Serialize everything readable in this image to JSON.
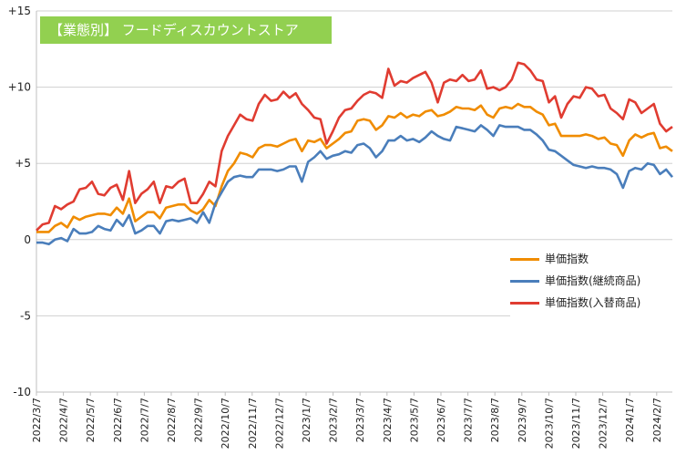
{
  "chart_data": {
    "type": "line",
    "title": "【業態別】 フードディスカウントストア",
    "ylim": [
      -10,
      15
    ],
    "yticks": [
      "-10",
      "-5",
      "0",
      "+5",
      "+10",
      "+15"
    ],
    "ytick_values": [
      -10,
      -5,
      0,
      5,
      10,
      15
    ],
    "xtick_labels": [
      "2022/3/7",
      "2022/4/7",
      "2022/5/7",
      "2022/6/7",
      "2022/7/7",
      "2022/8/7",
      "2022/9/7",
      "2022/10/7",
      "2022/11/7",
      "2022/12/7",
      "2023/1/7",
      "2023/2/7",
      "2023/3/7",
      "2023/4/7",
      "2023/5/7",
      "2023/6/7",
      "2023/7/7",
      "2023/8/7",
      "2023/9/7",
      "2023/10/7",
      "2023/11/7",
      "2023/12/7",
      "2024/1/7",
      "2024/2/7"
    ],
    "grid": true,
    "legend_position": "right",
    "series": [
      {
        "name": "単価指数",
        "color": "#f08c00",
        "values": [
          0.5,
          0.5,
          0.5,
          0.9,
          1.1,
          0.8,
          1.5,
          1.3,
          1.5,
          1.6,
          1.7,
          1.7,
          1.6,
          2.1,
          1.7,
          2.7,
          1.2,
          1.5,
          1.8,
          1.8,
          1.4,
          2.1,
          2.2,
          2.3,
          2.3,
          1.9,
          1.7,
          2.0,
          2.6,
          2.2,
          3.5,
          4.5,
          5.0,
          5.7,
          5.6,
          5.4,
          6.0,
          6.2,
          6.2,
          6.1,
          6.3,
          6.5,
          6.6,
          5.8,
          6.5,
          6.4,
          6.6,
          6.0,
          6.3,
          6.6,
          7.0,
          7.1,
          7.8,
          7.9,
          7.8,
          7.2,
          7.5,
          8.1,
          8.0,
          8.3,
          8.0,
          8.2,
          8.1,
          8.4,
          8.5,
          8.1,
          8.2,
          8.4,
          8.7,
          8.6,
          8.6,
          8.5,
          8.8,
          8.2,
          8.0,
          8.6,
          8.7,
          8.6,
          8.9,
          8.7,
          8.7,
          8.4,
          8.2,
          7.5,
          7.6,
          6.8,
          6.8,
          6.8,
          6.8,
          6.9,
          6.8,
          6.6,
          6.7,
          6.3,
          6.2,
          5.5,
          6.5,
          6.9,
          6.7,
          6.9,
          7.0,
          6.0,
          6.1,
          5.8
        ]
      },
      {
        "name": "単価指数(継続商品)",
        "color": "#4a7ebb",
        "values": [
          -0.2,
          -0.2,
          -0.3,
          0.0,
          0.1,
          -0.1,
          0.7,
          0.4,
          0.4,
          0.5,
          0.9,
          0.7,
          0.6,
          1.3,
          0.9,
          1.6,
          0.4,
          0.6,
          0.9,
          0.9,
          0.4,
          1.2,
          1.3,
          1.2,
          1.3,
          1.4,
          1.1,
          1.8,
          1.1,
          2.4,
          3.1,
          3.8,
          4.1,
          4.2,
          4.1,
          4.1,
          4.6,
          4.6,
          4.6,
          4.5,
          4.6,
          4.8,
          4.8,
          3.8,
          5.1,
          5.4,
          5.8,
          5.3,
          5.5,
          5.6,
          5.8,
          5.7,
          6.2,
          6.3,
          6.0,
          5.4,
          5.8,
          6.5,
          6.5,
          6.8,
          6.5,
          6.6,
          6.4,
          6.7,
          7.1,
          6.8,
          6.6,
          6.5,
          7.4,
          7.3,
          7.2,
          7.1,
          7.5,
          7.2,
          6.8,
          7.5,
          7.4,
          7.4,
          7.4,
          7.2,
          7.2,
          6.9,
          6.5,
          5.9,
          5.8,
          5.5,
          5.2,
          4.9,
          4.8,
          4.7,
          4.8,
          4.7,
          4.7,
          4.6,
          4.3,
          3.4,
          4.5,
          4.7,
          4.6,
          5.0,
          4.9,
          4.3,
          4.6,
          4.1
        ]
      },
      {
        "name": "単価指数(入替商品)",
        "color": "#e03c31",
        "values": [
          0.6,
          1.0,
          1.1,
          2.2,
          2.0,
          2.3,
          2.5,
          3.3,
          3.4,
          3.8,
          3.0,
          2.9,
          3.4,
          3.6,
          2.6,
          4.5,
          2.4,
          3.0,
          3.3,
          3.8,
          2.4,
          3.5,
          3.4,
          3.8,
          4.0,
          2.4,
          2.4,
          3.0,
          3.8,
          3.5,
          5.8,
          6.8,
          7.5,
          8.2,
          7.9,
          7.8,
          8.9,
          9.5,
          9.1,
          9.2,
          9.7,
          9.3,
          9.6,
          8.9,
          8.5,
          8.0,
          7.9,
          6.3,
          7.1,
          8.0,
          8.5,
          8.6,
          9.1,
          9.5,
          9.7,
          9.6,
          9.3,
          11.2,
          10.1,
          10.4,
          10.3,
          10.6,
          10.8,
          11.0,
          10.3,
          9.0,
          10.3,
          10.5,
          10.4,
          10.8,
          10.4,
          10.5,
          11.1,
          9.9,
          10.0,
          9.8,
          10.0,
          10.5,
          11.6,
          11.5,
          11.1,
          10.5,
          10.4,
          9.0,
          9.4,
          8.0,
          8.9,
          9.4,
          9.3,
          10.0,
          9.9,
          9.4,
          9.5,
          8.6,
          8.3,
          7.9,
          9.2,
          9.0,
          8.3,
          8.6,
          8.9,
          7.6,
          7.1,
          7.4
        ]
      }
    ]
  }
}
